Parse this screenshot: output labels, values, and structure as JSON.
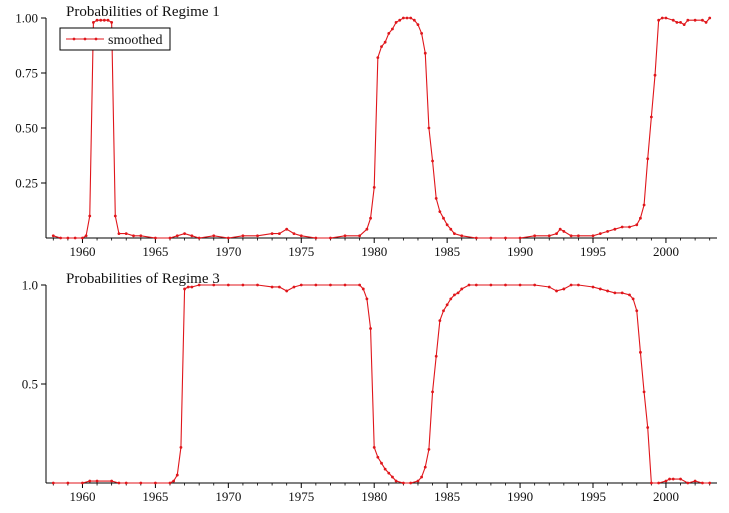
{
  "accent_color": "#e0161b",
  "chart_data": [
    {
      "type": "line",
      "title": "Probabilities of Regime 1",
      "xlabel": "",
      "ylabel": "",
      "xlim": [
        1957.5,
        2003.5
      ],
      "ylim": [
        0,
        1.0
      ],
      "x_ticks": [
        1960,
        1965,
        1970,
        1975,
        1980,
        1985,
        1990,
        1995,
        2000
      ],
      "x_tick_labels": [
        "1960",
        "1965",
        "1970",
        "1975",
        "1980",
        "1985",
        "1990",
        "1995",
        "2000"
      ],
      "y_ticks": [
        0.25,
        0.5,
        0.75,
        1.0
      ],
      "y_tick_labels": [
        "0.25",
        "0.50",
        "0.75",
        "1.00"
      ],
      "legend": {
        "entries": [
          "smoothed"
        ],
        "placement": "top-left"
      },
      "series": [
        {
          "name": "smoothed",
          "color": "#e0161b",
          "points": [
            [
              1958.0,
              0.01
            ],
            [
              1958.5,
              0.0
            ],
            [
              1959.0,
              0.0
            ],
            [
              1959.5,
              0.0
            ],
            [
              1960.0,
              0.0
            ],
            [
              1960.25,
              0.01
            ],
            [
              1960.5,
              0.1
            ],
            [
              1960.75,
              0.98
            ],
            [
              1961.0,
              0.99
            ],
            [
              1961.25,
              0.99
            ],
            [
              1961.5,
              0.99
            ],
            [
              1961.75,
              0.99
            ],
            [
              1962.0,
              0.98
            ],
            [
              1962.25,
              0.1
            ],
            [
              1962.5,
              0.02
            ],
            [
              1963.0,
              0.02
            ],
            [
              1963.5,
              0.01
            ],
            [
              1964.0,
              0.01
            ],
            [
              1965.0,
              0.0
            ],
            [
              1966.0,
              0.0
            ],
            [
              1966.5,
              0.01
            ],
            [
              1967.0,
              0.02
            ],
            [
              1967.5,
              0.01
            ],
            [
              1968.0,
              0.0
            ],
            [
              1969.0,
              0.01
            ],
            [
              1970.0,
              0.0
            ],
            [
              1971.0,
              0.01
            ],
            [
              1972.0,
              0.01
            ],
            [
              1973.0,
              0.02
            ],
            [
              1973.5,
              0.02
            ],
            [
              1974.0,
              0.04
            ],
            [
              1974.5,
              0.02
            ],
            [
              1975.0,
              0.01
            ],
            [
              1976.0,
              0.0
            ],
            [
              1977.0,
              0.0
            ],
            [
              1978.0,
              0.01
            ],
            [
              1979.0,
              0.01
            ],
            [
              1979.5,
              0.04
            ],
            [
              1979.75,
              0.09
            ],
            [
              1980.0,
              0.23
            ],
            [
              1980.25,
              0.82
            ],
            [
              1980.5,
              0.87
            ],
            [
              1980.75,
              0.89
            ],
            [
              1981.0,
              0.93
            ],
            [
              1981.25,
              0.95
            ],
            [
              1981.5,
              0.98
            ],
            [
              1981.75,
              0.99
            ],
            [
              1982.0,
              1.0
            ],
            [
              1982.25,
              1.0
            ],
            [
              1982.5,
              1.0
            ],
            [
              1982.75,
              0.99
            ],
            [
              1983.0,
              0.97
            ],
            [
              1983.25,
              0.93
            ],
            [
              1983.5,
              0.84
            ],
            [
              1983.75,
              0.5
            ],
            [
              1984.0,
              0.35
            ],
            [
              1984.25,
              0.18
            ],
            [
              1984.5,
              0.12
            ],
            [
              1984.75,
              0.09
            ],
            [
              1985.0,
              0.06
            ],
            [
              1985.25,
              0.04
            ],
            [
              1985.5,
              0.02
            ],
            [
              1986.0,
              0.01
            ],
            [
              1987.0,
              0.0
            ],
            [
              1988.0,
              0.0
            ],
            [
              1989.0,
              0.0
            ],
            [
              1990.0,
              0.0
            ],
            [
              1991.0,
              0.01
            ],
            [
              1992.0,
              0.01
            ],
            [
              1992.5,
              0.02
            ],
            [
              1992.75,
              0.04
            ],
            [
              1993.0,
              0.03
            ],
            [
              1993.5,
              0.01
            ],
            [
              1994.0,
              0.01
            ],
            [
              1995.0,
              0.01
            ],
            [
              1995.5,
              0.02
            ],
            [
              1996.0,
              0.03
            ],
            [
              1996.5,
              0.04
            ],
            [
              1997.0,
              0.05
            ],
            [
              1997.5,
              0.05
            ],
            [
              1998.0,
              0.06
            ],
            [
              1998.25,
              0.09
            ],
            [
              1998.5,
              0.15
            ],
            [
              1998.75,
              0.36
            ],
            [
              1999.0,
              0.55
            ],
            [
              1999.25,
              0.74
            ],
            [
              1999.5,
              0.99
            ],
            [
              1999.75,
              1.0
            ],
            [
              2000.0,
              1.0
            ],
            [
              2000.5,
              0.99
            ],
            [
              2000.75,
              0.98
            ],
            [
              2001.0,
              0.98
            ],
            [
              2001.25,
              0.97
            ],
            [
              2001.5,
              0.99
            ],
            [
              2002.0,
              0.99
            ],
            [
              2002.5,
              0.99
            ],
            [
              2002.75,
              0.98
            ],
            [
              2003.0,
              1.0
            ]
          ]
        }
      ]
    },
    {
      "type": "line",
      "title": "Probabilities of Regime 3",
      "xlabel": "",
      "ylabel": "",
      "xlim": [
        1957.5,
        2003.5
      ],
      "ylim": [
        0,
        1.0
      ],
      "x_ticks": [
        1960,
        1965,
        1970,
        1975,
        1980,
        1985,
        1990,
        1995,
        2000
      ],
      "x_tick_labels": [
        "1960",
        "1965",
        "1970",
        "1975",
        "1980",
        "1985",
        "1990",
        "1995",
        "2000"
      ],
      "y_ticks": [
        0.5,
        1.0
      ],
      "y_tick_labels": [
        "0.5",
        "1.0"
      ],
      "series": [
        {
          "color": "#e0161b",
          "points": [
            [
              1958.0,
              0.0
            ],
            [
              1959.0,
              0.0
            ],
            [
              1960.0,
              0.0
            ],
            [
              1960.5,
              0.01
            ],
            [
              1961.0,
              0.01
            ],
            [
              1962.0,
              0.01
            ],
            [
              1962.5,
              0.0
            ],
            [
              1963.0,
              0.0
            ],
            [
              1964.0,
              0.0
            ],
            [
              1965.0,
              0.0
            ],
            [
              1966.0,
              0.0
            ],
            [
              1966.25,
              0.01
            ],
            [
              1966.5,
              0.04
            ],
            [
              1966.75,
              0.18
            ],
            [
              1967.0,
              0.98
            ],
            [
              1967.25,
              0.99
            ],
            [
              1967.5,
              0.99
            ],
            [
              1968.0,
              1.0
            ],
            [
              1969.0,
              1.0
            ],
            [
              1970.0,
              1.0
            ],
            [
              1971.0,
              1.0
            ],
            [
              1972.0,
              1.0
            ],
            [
              1973.0,
              0.99
            ],
            [
              1973.5,
              0.99
            ],
            [
              1974.0,
              0.97
            ],
            [
              1974.5,
              0.99
            ],
            [
              1975.0,
              1.0
            ],
            [
              1976.0,
              1.0
            ],
            [
              1977.0,
              1.0
            ],
            [
              1978.0,
              1.0
            ],
            [
              1979.0,
              1.0
            ],
            [
              1979.25,
              0.98
            ],
            [
              1979.5,
              0.93
            ],
            [
              1979.75,
              0.78
            ],
            [
              1980.0,
              0.18
            ],
            [
              1980.25,
              0.13
            ],
            [
              1980.5,
              0.1
            ],
            [
              1980.75,
              0.07
            ],
            [
              1981.0,
              0.05
            ],
            [
              1981.25,
              0.03
            ],
            [
              1981.5,
              0.01
            ],
            [
              1982.0,
              0.0
            ],
            [
              1982.5,
              0.0
            ],
            [
              1983.0,
              0.01
            ],
            [
              1983.25,
              0.03
            ],
            [
              1983.5,
              0.08
            ],
            [
              1983.75,
              0.17
            ],
            [
              1984.0,
              0.46
            ],
            [
              1984.25,
              0.64
            ],
            [
              1984.5,
              0.82
            ],
            [
              1984.75,
              0.87
            ],
            [
              1985.0,
              0.9
            ],
            [
              1985.25,
              0.93
            ],
            [
              1985.5,
              0.95
            ],
            [
              1985.75,
              0.96
            ],
            [
              1986.0,
              0.98
            ],
            [
              1986.5,
              1.0
            ],
            [
              1987.0,
              1.0
            ],
            [
              1988.0,
              1.0
            ],
            [
              1989.0,
              1.0
            ],
            [
              1990.0,
              1.0
            ],
            [
              1991.0,
              1.0
            ],
            [
              1992.0,
              0.99
            ],
            [
              1992.5,
              0.97
            ],
            [
              1993.0,
              0.98
            ],
            [
              1993.5,
              1.0
            ],
            [
              1994.0,
              1.0
            ],
            [
              1995.0,
              0.99
            ],
            [
              1995.5,
              0.98
            ],
            [
              1996.0,
              0.97
            ],
            [
              1996.5,
              0.96
            ],
            [
              1997.0,
              0.96
            ],
            [
              1997.5,
              0.95
            ],
            [
              1997.75,
              0.93
            ],
            [
              1998.0,
              0.87
            ],
            [
              1998.25,
              0.66
            ],
            [
              1998.5,
              0.46
            ],
            [
              1998.75,
              0.28
            ],
            [
              1999.0,
              0.0
            ],
            [
              1999.5,
              0.0
            ],
            [
              2000.0,
              0.01
            ],
            [
              2000.25,
              0.02
            ],
            [
              2000.5,
              0.02
            ],
            [
              2001.0,
              0.02
            ],
            [
              2001.5,
              0.0
            ],
            [
              2002.0,
              0.01
            ],
            [
              2002.5,
              0.0
            ],
            [
              2003.0,
              0.0
            ]
          ]
        }
      ]
    }
  ]
}
